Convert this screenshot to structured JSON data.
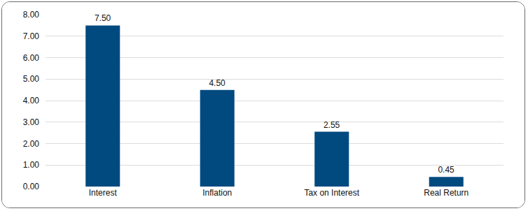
{
  "chart_data": {
    "type": "bar",
    "categories": [
      "Interest",
      "Inflation",
      "Tax on Interest",
      "Real Return"
    ],
    "values": [
      7.5,
      4.5,
      2.55,
      0.45
    ],
    "value_labels": [
      "7.50",
      "4.50",
      "2.55",
      "0.45"
    ],
    "data_labels": true,
    "color": "#004a80",
    "ylim": [
      0,
      8
    ],
    "yticks": [
      {
        "value": 0,
        "label": "0.00"
      },
      {
        "value": 1,
        "label": "1.00"
      },
      {
        "value": 2,
        "label": "2.00"
      },
      {
        "value": 3,
        "label": "3.00"
      },
      {
        "value": 4,
        "label": "4.00"
      },
      {
        "value": 5,
        "label": "5.00"
      },
      {
        "value": 6,
        "label": "6.00"
      },
      {
        "value": 7,
        "label": "7.00"
      },
      {
        "value": 8,
        "label": "8.00"
      }
    ],
    "grid": true
  }
}
